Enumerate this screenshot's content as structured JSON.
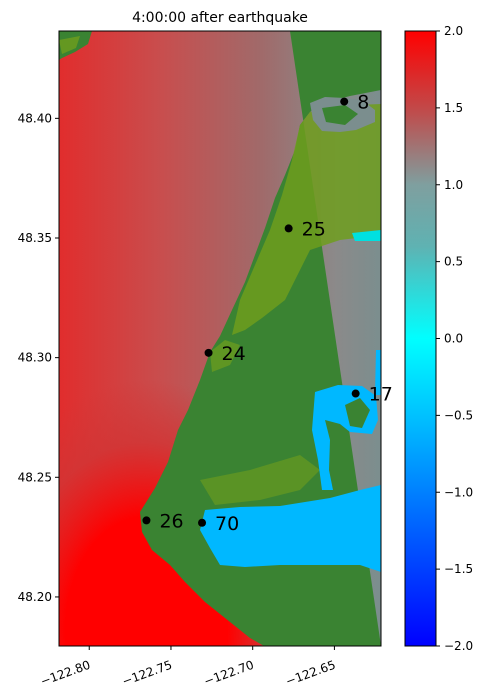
{
  "title": "4:00:00 after earthquake",
  "map": {
    "lon_range": [
      -122.8185,
      -122.6215
    ],
    "lat_range": [
      48.1795,
      48.4365
    ],
    "x_ticks": [
      -122.8,
      -122.75,
      -122.7,
      -122.65
    ],
    "x_tick_labels": [
      "−122.80",
      "−122.75",
      "−122.70",
      "−122.65"
    ],
    "y_ticks": [
      48.2,
      48.25,
      48.3,
      48.35,
      48.4
    ],
    "y_tick_labels": [
      "48.20",
      "48.25",
      "48.30",
      "48.35",
      "48.40"
    ],
    "x_tick_label_rotation": "20 degrees",
    "colors": {
      "land": "#3a8332",
      "land_light": "#6f9e1d",
      "water_high": "#ff0000",
      "water_mid": "#c44c4c",
      "water_low": "#7b8e8e",
      "water_negative": "#00b8ff"
    }
  },
  "gauges": [
    {
      "id": "8",
      "lon": -122.644,
      "lat": 48.407
    },
    {
      "id": "25",
      "lon": -122.678,
      "lat": 48.354
    },
    {
      "id": "24",
      "lon": -122.727,
      "lat": 48.302
    },
    {
      "id": "17",
      "lon": -122.637,
      "lat": 48.285
    },
    {
      "id": "26",
      "lon": -122.765,
      "lat": 48.232
    },
    {
      "id": "70",
      "lon": -122.731,
      "lat": 48.231
    }
  ],
  "colorbar": {
    "range": [
      -2.0,
      2.0
    ],
    "ticks": [
      2.0,
      1.5,
      1.0,
      0.5,
      0.0,
      -0.5,
      -1.0,
      -1.5,
      -2.0
    ],
    "tick_labels": [
      "2.0",
      "1.5",
      "1.0",
      "0.5",
      "0.0",
      "−0.5",
      "−1.0",
      "−1.5",
      "−2.0"
    ],
    "colormap": [
      "#0000ff",
      "#00bfff",
      "#00ffff",
      "#7f9f9f",
      "#c04b4b",
      "#ff0000"
    ]
  }
}
